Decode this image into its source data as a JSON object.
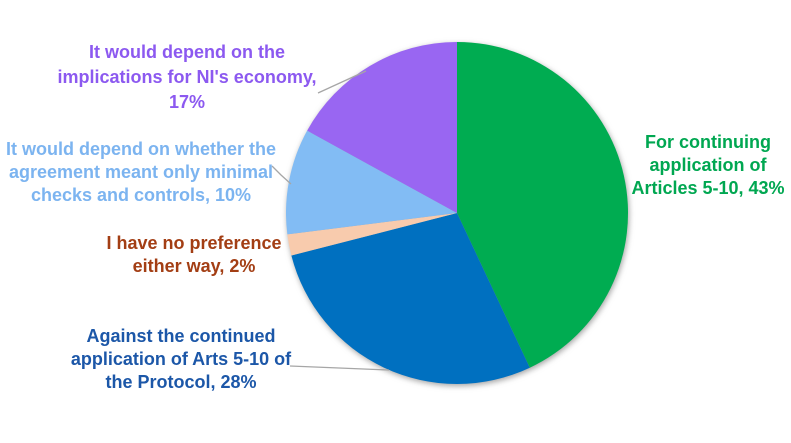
{
  "chart_data": {
    "type": "pie",
    "title": "",
    "units": "%",
    "total": 100,
    "start_angle_deg": 0,
    "direction": "clockwise",
    "legend": "none",
    "data_labels": "outside-with-leader-lines",
    "leader_line_color": "#a6a6a6",
    "slices": [
      {
        "id": "for-articles",
        "label": "For continuing application of Articles 5-10",
        "value": 43,
        "display_text": "For continuing\napplication of\nArticles 5-10, 43%",
        "color": "#00ac51",
        "label_color": "#00a751"
      },
      {
        "id": "against-articles",
        "label": "Against the continued application of Arts 5-10 of the Protocol",
        "value": 28,
        "display_text": "Against the continued\napplication of Arts 5-10 of\nthe Protocol, 28%",
        "color": "#0070c0",
        "label_color": "#1c57a8"
      },
      {
        "id": "no-preference",
        "label": "I have no preference either way",
        "value": 2,
        "display_text": "I have no preference\neither way, 2%",
        "color": "#f8cbad",
        "label_color": "#a33e14"
      },
      {
        "id": "depends-checks",
        "label": "It would depend on whether the agreement meant only minimal checks and controls",
        "value": 10,
        "display_text": "It would depend on whether the\nagreement meant only minimal\nchecks and controls, 10%",
        "color": "#82bcf4",
        "label_color": "#7cb4f0"
      },
      {
        "id": "depends-economy",
        "label": "It would depend on the implications for NI's economy",
        "value": 17,
        "display_text": "It would depend on the\nimplications for NI's economy, 17%",
        "color": "#9966f2",
        "label_color": "#8c59f0"
      }
    ]
  }
}
